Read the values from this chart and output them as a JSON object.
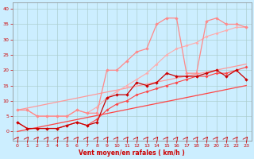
{
  "xlabel": "Vent moyen/en rafales ( km/h )",
  "background_color": "#cceeff",
  "grid_color": "#aacccc",
  "x_values": [
    0,
    1,
    2,
    3,
    4,
    5,
    6,
    7,
    8,
    9,
    10,
    11,
    12,
    13,
    14,
    15,
    16,
    17,
    18,
    19,
    20,
    21,
    22,
    23
  ],
  "line_diag_low": [
    0,
    0.65,
    1.3,
    1.96,
    2.61,
    3.26,
    3.91,
    4.57,
    5.22,
    5.87,
    6.52,
    7.17,
    7.83,
    8.48,
    9.13,
    9.78,
    10.43,
    11.09,
    11.74,
    12.39,
    13.04,
    13.7,
    14.35,
    15.0
  ],
  "line_diag_high": [
    7,
    7.65,
    8.3,
    8.96,
    9.61,
    10.26,
    10.91,
    11.57,
    12.22,
    12.87,
    13.52,
    14.17,
    14.83,
    15.48,
    16.13,
    16.78,
    17.43,
    18.09,
    18.74,
    19.39,
    20.04,
    20.7,
    21.35,
    22.0
  ],
  "line_mean": [
    3,
    1,
    1,
    1,
    1,
    2,
    3,
    2,
    3,
    11,
    12,
    12,
    16,
    15,
    16,
    19,
    18,
    18,
    18,
    19,
    20,
    18,
    20,
    17
  ],
  "line_gust": [
    7,
    7,
    5,
    5,
    5,
    5,
    7,
    6,
    6,
    20,
    20,
    23,
    26,
    27,
    35,
    37,
    37,
    19,
    19,
    36,
    37,
    35,
    35,
    34
  ],
  "line_extra1": [
    3,
    1,
    1,
    1,
    1,
    2,
    3,
    2,
    4,
    7,
    9,
    10,
    12,
    13,
    14,
    15,
    16,
    17,
    18,
    18,
    19,
    19,
    20,
    21
  ],
  "line_extra2": [
    7,
    7,
    5,
    5,
    5,
    5,
    7,
    6,
    8,
    11,
    13,
    15,
    17,
    19,
    22,
    25,
    27,
    28,
    29,
    31,
    32,
    33,
    34,
    34
  ],
  "color_diag_low": "#ff4444",
  "color_diag_high": "#ff9999",
  "color_mean": "#cc0000",
  "color_gust": "#ff8888",
  "color_extra1": "#ff4444",
  "color_extra2": "#ffaaaa",
  "xlim": [
    -0.5,
    23.5
  ],
  "ylim": [
    -3,
    42
  ],
  "yticks": [
    0,
    5,
    10,
    15,
    20,
    25,
    30,
    35,
    40
  ],
  "xticks": [
    0,
    1,
    2,
    3,
    4,
    5,
    6,
    7,
    8,
    9,
    10,
    11,
    12,
    13,
    14,
    15,
    16,
    17,
    18,
    19,
    20,
    21,
    22,
    23
  ]
}
